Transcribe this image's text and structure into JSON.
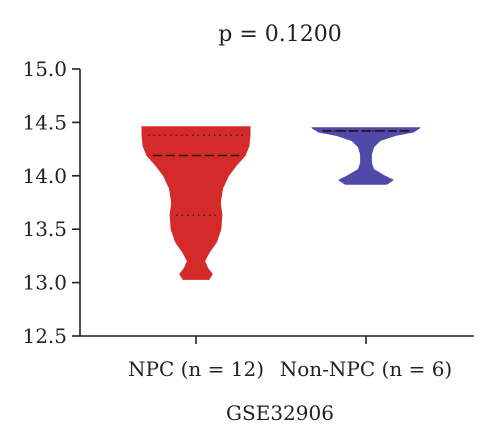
{
  "chart_data": {
    "type": "violin",
    "title": "p = 0.1200",
    "xlabel": "GSE32906",
    "ylabel": "",
    "ylim": [
      12.5,
      15.0
    ],
    "yticks": [
      "12.5",
      "13.0",
      "13.5",
      "14.0",
      "14.5",
      "15.0"
    ],
    "categories": [
      "NPC (n = 12)",
      "Non-NPC (n = 6)"
    ],
    "grid": false,
    "legend": "none",
    "series": [
      {
        "category": "NPC (n = 12)",
        "color": "#d42a2a",
        "range": [
          13.03,
          14.46
        ],
        "median": 14.19,
        "quartiles": [
          13.63,
          14.38
        ],
        "profile": [
          [
            13.03,
            0.24
          ],
          [
            13.08,
            0.3
          ],
          [
            13.13,
            0.22
          ],
          [
            13.2,
            0.16
          ],
          [
            13.28,
            0.24
          ],
          [
            13.38,
            0.38
          ],
          [
            13.5,
            0.46
          ],
          [
            13.63,
            0.48
          ],
          [
            13.75,
            0.45
          ],
          [
            13.88,
            0.49
          ],
          [
            14.0,
            0.6
          ],
          [
            14.1,
            0.75
          ],
          [
            14.19,
            0.91
          ],
          [
            14.28,
            0.98
          ],
          [
            14.38,
            1.0
          ],
          [
            14.46,
            1.0
          ]
        ]
      },
      {
        "category": "Non-NPC (n = 6)",
        "color": "#4f4aa8",
        "range": [
          13.92,
          14.45
        ],
        "median": 14.42,
        "quartiles": [
          14.42,
          14.42
        ],
        "profile": [
          [
            13.92,
            0.38
          ],
          [
            13.96,
            0.5
          ],
          [
            14.0,
            0.34
          ],
          [
            14.06,
            0.14
          ],
          [
            14.12,
            0.1
          ],
          [
            14.2,
            0.1
          ],
          [
            14.27,
            0.14
          ],
          [
            14.33,
            0.26
          ],
          [
            14.38,
            0.56
          ],
          [
            14.41,
            0.88
          ],
          [
            14.45,
            1.0
          ]
        ]
      }
    ]
  }
}
